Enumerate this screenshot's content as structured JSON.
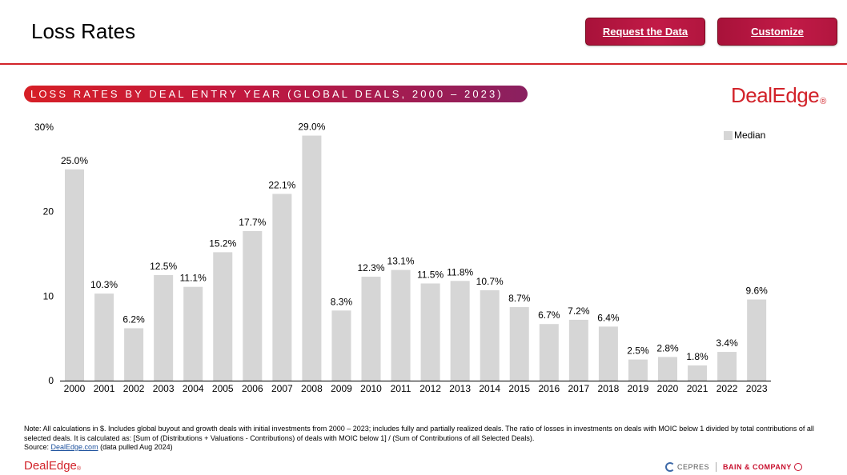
{
  "header": {
    "title": "Loss Rates",
    "request_label": "Request the Data",
    "customize_label": "Customize"
  },
  "banner": {
    "text": "LOSS RATES BY DEAL ENTRY YEAR (GLOBAL DEALS, 2000 – 2023)"
  },
  "brand": {
    "logo_text": "DealEdge",
    "reg": "®"
  },
  "chart_data": {
    "type": "bar",
    "title": "LOSS RATES BY DEAL ENTRY YEAR (GLOBAL DEALS, 2000 – 2023)",
    "categories": [
      "2000",
      "2001",
      "2002",
      "2003",
      "2004",
      "2005",
      "2006",
      "2007",
      "2008",
      "2009",
      "2010",
      "2011",
      "2012",
      "2013",
      "2014",
      "2015",
      "2016",
      "2017",
      "2018",
      "2019",
      "2020",
      "2021",
      "2022",
      "2023"
    ],
    "series": [
      {
        "name": "Median",
        "values": [
          25.0,
          10.3,
          6.2,
          12.5,
          11.1,
          15.2,
          17.7,
          22.1,
          29.0,
          8.3,
          12.3,
          13.1,
          11.5,
          11.8,
          10.7,
          8.7,
          6.7,
          7.2,
          6.4,
          2.5,
          2.8,
          1.8,
          3.4,
          9.6
        ],
        "labels": [
          "25.0%",
          "10.3%",
          "6.2%",
          "12.5%",
          "11.1%",
          "15.2%",
          "17.7%",
          "22.1%",
          "29.0%",
          "8.3%",
          "12.3%",
          "13.1%",
          "11.5%",
          "11.8%",
          "10.7%",
          "8.7%",
          "6.7%",
          "7.2%",
          "6.4%",
          "2.5%",
          "2.8%",
          "1.8%",
          "3.4%",
          "9.6%"
        ],
        "color": "#d6d6d6"
      }
    ],
    "ylim": [
      0,
      30
    ],
    "yticks": [
      0,
      10,
      20,
      30
    ],
    "ytick_labels": [
      "0",
      "10",
      "20",
      "30%"
    ],
    "xlabel": "",
    "ylabel": "",
    "grid": false,
    "legend": "top-right"
  },
  "note": {
    "text": "Note: All calculations in $. Includes global buyout and growth deals with initial investments from 2000 – 2023; includes fully and partially realized deals. The ratio of losses in investments on deals with MOIC below 1 divided by total contributions of all selected deals. It is calculated as: [Sum of (Distributions + Valuations - Contributions) of deals with MOIC below 1] / (Sum of Contributions of all Selected Deals).",
    "source_prefix": "Source: ",
    "source_link": "DealEdge.com",
    "source_suffix": " (data pulled Aug 2024)"
  },
  "footer": {
    "logo_text": "DealEdge",
    "reg": "®",
    "partner1": "CEPRES",
    "partner2": "BAIN & COMPANY"
  },
  "colors": {
    "accent_red": "#d2232a",
    "button": "#b2163f",
    "bar": "#d6d6d6"
  }
}
